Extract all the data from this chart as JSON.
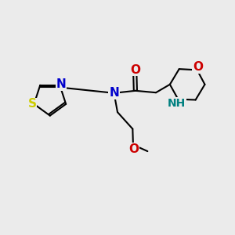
{
  "background_color": "#ebebeb",
  "bond_color": "#000000",
  "bond_width": 1.5,
  "atom_colors": {
    "S": "#cccc00",
    "N_blue": "#0000cc",
    "N_teal": "#008080",
    "O": "#cc0000",
    "C": "#000000"
  },
  "font_size": 10,
  "fig_width": 3.0,
  "fig_height": 3.0,
  "dpi": 100,
  "xlim": [
    0,
    10
  ],
  "ylim": [
    0,
    10
  ]
}
